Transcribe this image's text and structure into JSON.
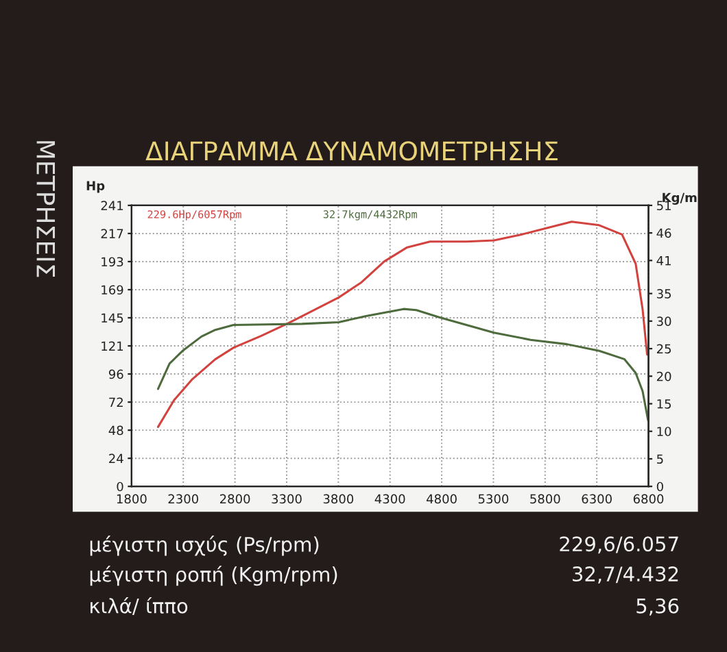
{
  "chart_data": {
    "type": "line",
    "title": "ΔΙΑΓΡΑΜΜΑ ΔΥΝΑΜΟΜΕΤΡΗΣΗΣ",
    "ylabel": "Hp",
    "y2label": "Kg/m",
    "xlim": [
      1800,
      6800
    ],
    "xticks": [
      1800,
      2300,
      2800,
      3300,
      3800,
      4300,
      4800,
      5300,
      5800,
      6300,
      6800
    ],
    "ylim": [
      0,
      241
    ],
    "yticks": [
      0,
      {
        "value": 24.1,
        "label": "24"
      },
      {
        "value": 48.2,
        "label": "48"
      },
      {
        "value": 72.3,
        "label": "72"
      },
      {
        "value": 96.4,
        "label": "96"
      },
      {
        "value": 120.5,
        "label": "121"
      },
      {
        "value": 144.6,
        "label": "145"
      },
      {
        "value": 168.7,
        "label": "169"
      },
      {
        "value": 192.8,
        "label": "193"
      },
      {
        "value": 216.9,
        "label": "217"
      },
      241
    ],
    "y2lim": [
      0,
      51
    ],
    "y2ticks": [
      0,
      5,
      10,
      15,
      20,
      25,
      30,
      35,
      41,
      46,
      51
    ],
    "grid": true,
    "line_style": "solid",
    "series": [
      {
        "color": "#d2433f",
        "x": [
          2056,
          2211,
          2388,
          2609,
          2786,
          3051,
          3316,
          3537,
          3803,
          4024,
          4245,
          4466,
          4687,
          4864,
          5040,
          5305,
          5570,
          5835,
          6057,
          6323,
          6544,
          6676,
          6743,
          6787
        ],
        "values": [
          51,
          74,
          92,
          109,
          119,
          129,
          140,
          150,
          162,
          175,
          193,
          205,
          210,
          210,
          210,
          211,
          216,
          222,
          227,
          224,
          216,
          191,
          152,
          113
        ]
      },
      {
        "color": "#4d6b3c",
        "axis": "y2",
        "x": [
          2056,
          2167,
          2300,
          2476,
          2609,
          2786,
          3095,
          3449,
          3803,
          4068,
          4432,
          4554,
          4775,
          5040,
          5305,
          5659,
          6013,
          6323,
          6566,
          6676,
          6743,
          6796
        ],
        "values": [
          17.7,
          22.3,
          24.7,
          27.2,
          28.4,
          29.3,
          29.4,
          29.5,
          29.8,
          30.9,
          32.2,
          32.0,
          30.7,
          29.3,
          27.9,
          26.6,
          25.8,
          24.6,
          23.1,
          20.6,
          17.3,
          12.0
        ]
      }
    ],
    "annotations": [
      "229.6Hp/6057Rpm",
      "32.7kgm/4432Rpm",
      "ΜΕΤΡΗΣΕΙΣ",
      "μέγιστη ισχύς (Ps/rpm)",
      "229,6/6.057",
      "μέγιστη ροπή (Kgm/rpm)",
      "32,7/4.432",
      "κιλά/ ίππο",
      "5,36"
    ]
  }
}
